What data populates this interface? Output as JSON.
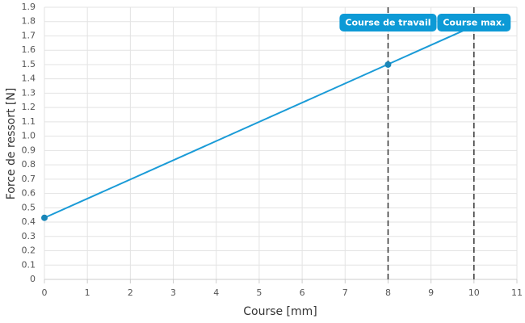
{
  "chart_data": {
    "type": "line",
    "x_label": "Course [mm]",
    "y_label": "Force de ressort [N]",
    "line": {
      "x": [
        0,
        10
      ],
      "values": [
        0.43,
        1.77
      ],
      "color": "#1a9bd7"
    },
    "points": {
      "x": [
        0,
        8
      ],
      "values": [
        0.43,
        1.5
      ],
      "color": "#1a86b8"
    },
    "annotations": [
      {
        "x": 8,
        "label": "Course de travail"
      },
      {
        "x": 10,
        "label": "Course max."
      }
    ],
    "annotation_color": "#0d9ad6",
    "xlim": [
      0,
      11
    ],
    "xticks": [
      0,
      1,
      2,
      3,
      4,
      5,
      6,
      7,
      8,
      9,
      10,
      11
    ],
    "ylim": [
      0,
      1.9
    ],
    "yticks": [
      0,
      0.1,
      0.2,
      0.3,
      0.4,
      0.5,
      0.6,
      0.7,
      0.8,
      0.9,
      {
        "value": 1,
        "label": "1.0"
      },
      1.1,
      1.2,
      1.3,
      1.4,
      1.5,
      1.6,
      1.7,
      1.8,
      1.9
    ],
    "grid": true
  }
}
